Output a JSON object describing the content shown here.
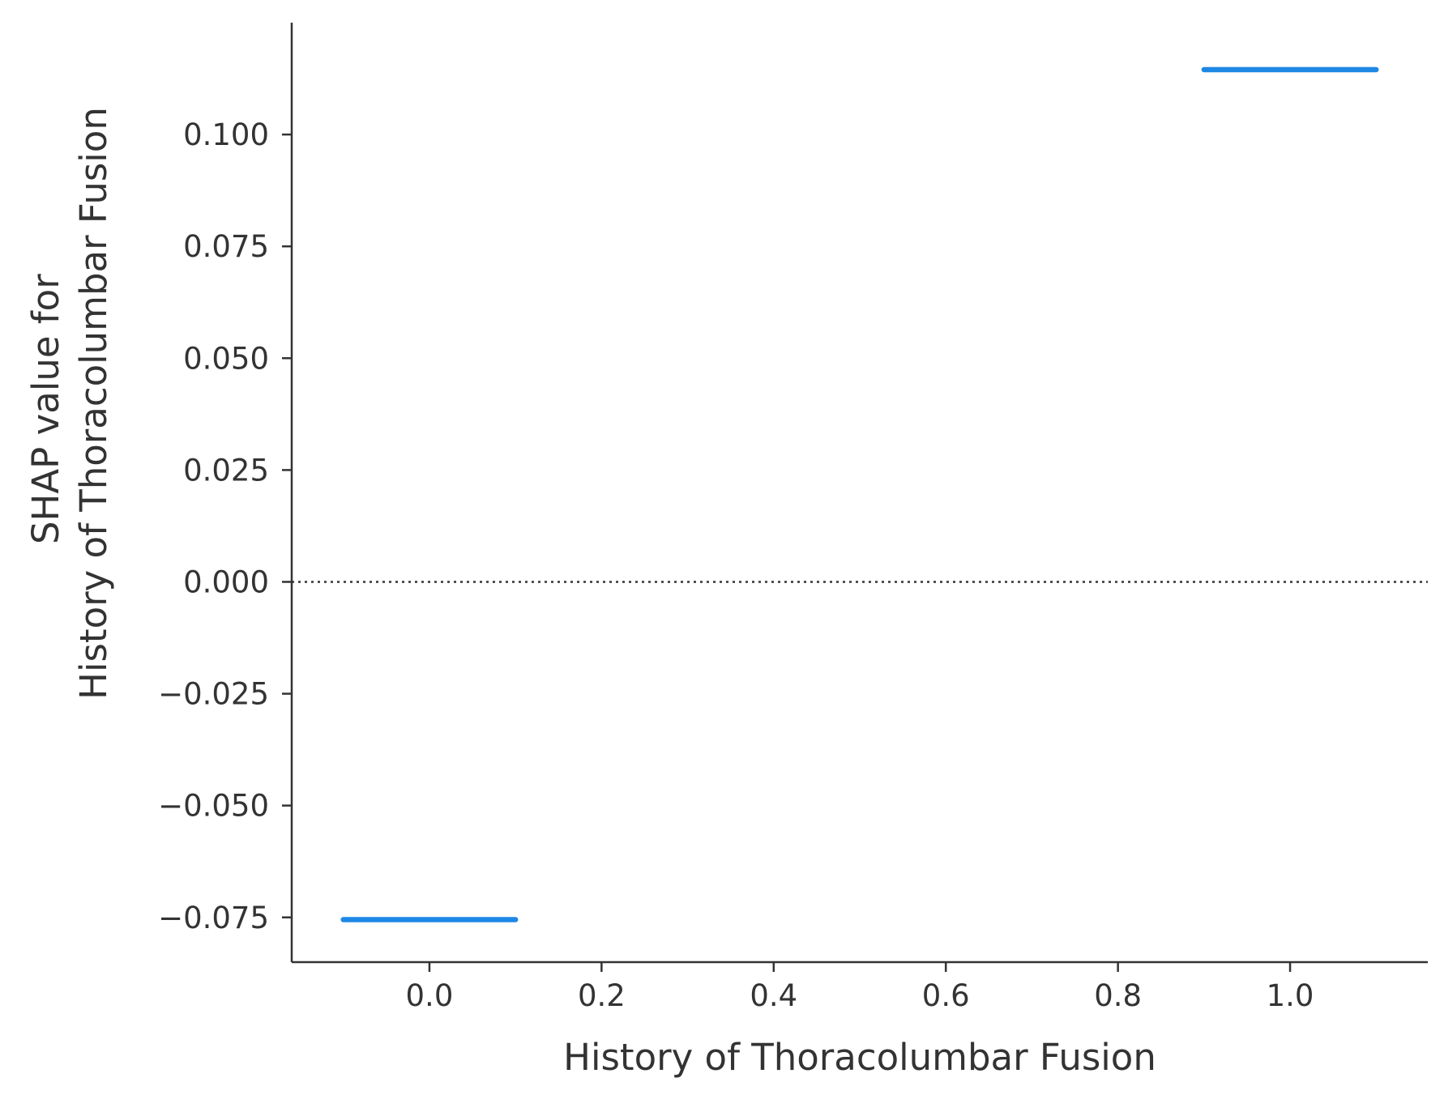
{
  "chart_data": {
    "type": "line",
    "xlabel": "History of Thoracolumbar Fusion",
    "ylabel_lines": [
      "SHAP value for",
      "History of Thoracolumbar Fusion"
    ],
    "xlim": [
      -0.16,
      1.16
    ],
    "ylim": [
      -0.085,
      0.125
    ],
    "x_ticks": [
      0.0,
      0.2,
      0.4,
      0.6,
      0.8,
      1.0
    ],
    "x_tick_labels": [
      "0.0",
      "0.2",
      "0.4",
      "0.6",
      "0.8",
      "1.0"
    ],
    "y_ticks": [
      0.1,
      0.075,
      0.05,
      0.025,
      0.0,
      -0.025,
      -0.05,
      -0.075
    ],
    "y_tick_labels": [
      "0.100",
      "0.075",
      "0.050",
      "0.025",
      "0.000",
      "−0.025",
      "−0.050",
      "−0.075"
    ],
    "series": [
      {
        "color": "#1e88e5",
        "segments": [
          {
            "x": [
              -0.1,
              0.1
            ],
            "y": [
              -0.0755,
              -0.0755
            ]
          },
          {
            "x": [
              0.9,
              1.1
            ],
            "y": [
              0.1145,
              0.1145
            ]
          }
        ]
      }
    ],
    "reference_line": {
      "y": 0.0,
      "style": "dotted",
      "color": "#333333"
    },
    "grid": false,
    "legend": "none"
  }
}
